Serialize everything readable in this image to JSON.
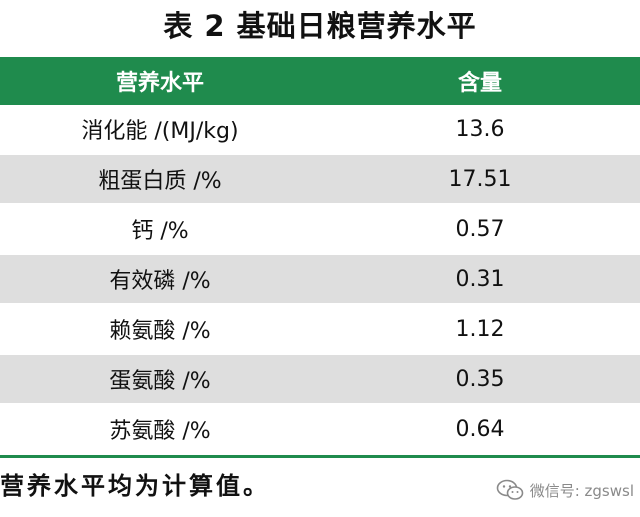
{
  "title": "表 2   基础日粮营养水平",
  "table": {
    "headers": [
      "营养水平",
      "含量"
    ],
    "rows": [
      {
        "name": "消化能 /(MJ/kg)",
        "value": "13.6"
      },
      {
        "name": "粗蛋白质 /%",
        "value": "17.51"
      },
      {
        "name": "钙 /%",
        "value": "0.57"
      },
      {
        "name": "有效磷 /%",
        "value": "0.31"
      },
      {
        "name": "赖氨酸 /%",
        "value": "1.12"
      },
      {
        "name": "蛋氨酸 /%",
        "value": "0.35"
      },
      {
        "name": "苏氨酸 /%",
        "value": "0.64"
      }
    ]
  },
  "note": "营养水平均为计算值。",
  "watermark": {
    "icon": "wechat-icon",
    "text": "微信号: zgswsl"
  },
  "colors": {
    "header_bg": "#1f8b4d",
    "stripe": "#dedede"
  }
}
